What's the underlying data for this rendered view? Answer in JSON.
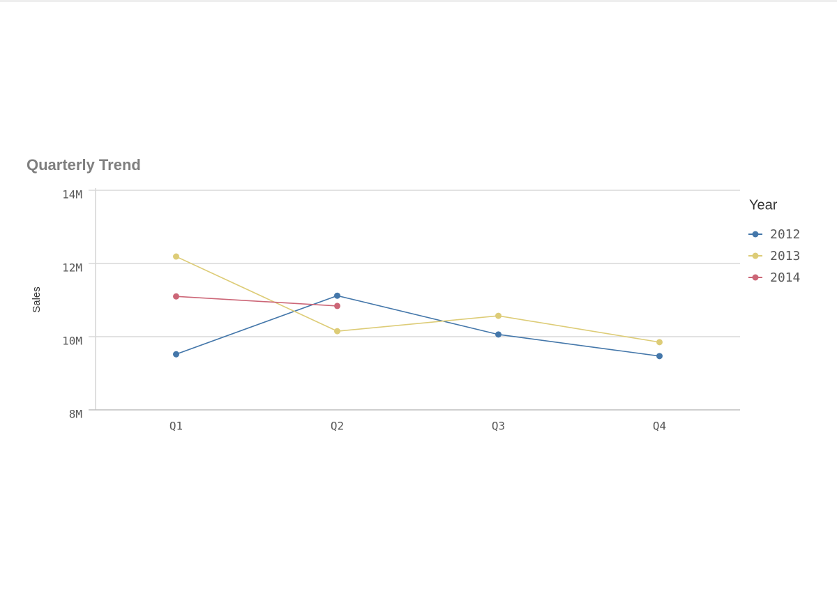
{
  "chart_data": {
    "type": "line",
    "title": "Quarterly Trend",
    "y_label": "Sales",
    "legend_title": "Year",
    "categories": [
      "Q1",
      "Q2",
      "Q3",
      "Q4"
    ],
    "series": [
      {
        "name": "2012",
        "color": "#4477aa",
        "values": [
          9520000,
          11120000,
          10060000,
          9470000
        ]
      },
      {
        "name": "2013",
        "color": "#ddcc77",
        "values": [
          12190000,
          10150000,
          10570000,
          9850000
        ]
      },
      {
        "name": "2014",
        "color": "#cc6677",
        "values": [
          11100000,
          10840000,
          null,
          null
        ]
      }
    ],
    "ylim": [
      8000000,
      14000000
    ],
    "yticks": [
      {
        "value": 8000000,
        "label": "8M"
      },
      {
        "value": 10000000,
        "label": "10M"
      },
      {
        "value": 12000000,
        "label": "12M"
      },
      {
        "value": 14000000,
        "label": "14M"
      }
    ],
    "grid": true,
    "legend": "right"
  }
}
